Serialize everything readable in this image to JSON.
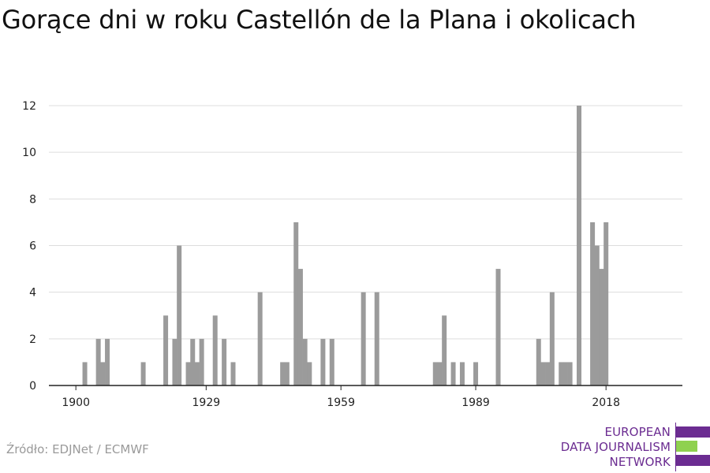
{
  "title": "Gorące dni w roku Castellón de la Plana i okolicach",
  "source": "Źródło: EDJNet / ECMWF",
  "logo": {
    "lines": [
      "EUROPEAN",
      "DATA JOURNALISM",
      "NETWORK"
    ],
    "colors": {
      "purple": "#6b2c91",
      "green": "#8fd14f"
    }
  },
  "colors": {
    "bar": "#9b9b9b",
    "grid": "#dddddd",
    "axis": "#222222",
    "text": "#222222"
  },
  "chart_data": {
    "type": "bar",
    "title": "Gorące dni w roku Castellón de la Plana i okolicach",
    "xlabel": "",
    "ylabel": "",
    "xlim": [
      1900,
      2018
    ],
    "ylim": [
      0,
      12
    ],
    "yticks": [
      0,
      2,
      4,
      6,
      8,
      10,
      12
    ],
    "xticks": [
      1900,
      1929,
      1959,
      1989,
      2018
    ],
    "grid": true,
    "legend": "none",
    "series": [
      {
        "values": [
          {
            "x": 1902,
            "y": 1
          },
          {
            "x": 1905,
            "y": 2
          },
          {
            "x": 1906,
            "y": 1
          },
          {
            "x": 1907,
            "y": 2
          },
          {
            "x": 1915,
            "y": 1
          },
          {
            "x": 1920,
            "y": 3
          },
          {
            "x": 1922,
            "y": 2
          },
          {
            "x": 1923,
            "y": 6
          },
          {
            "x": 1925,
            "y": 1
          },
          {
            "x": 1926,
            "y": 2
          },
          {
            "x": 1927,
            "y": 1
          },
          {
            "x": 1928,
            "y": 2
          },
          {
            "x": 1931,
            "y": 3
          },
          {
            "x": 1933,
            "y": 2
          },
          {
            "x": 1935,
            "y": 1
          },
          {
            "x": 1941,
            "y": 4
          },
          {
            "x": 1946,
            "y": 1
          },
          {
            "x": 1947,
            "y": 1
          },
          {
            "x": 1949,
            "y": 7
          },
          {
            "x": 1950,
            "y": 5
          },
          {
            "x": 1951,
            "y": 2
          },
          {
            "x": 1952,
            "y": 1
          },
          {
            "x": 1955,
            "y": 2
          },
          {
            "x": 1957,
            "y": 2
          },
          {
            "x": 1964,
            "y": 4
          },
          {
            "x": 1967,
            "y": 4
          },
          {
            "x": 1980,
            "y": 1
          },
          {
            "x": 1981,
            "y": 1
          },
          {
            "x": 1982,
            "y": 3
          },
          {
            "x": 1984,
            "y": 1
          },
          {
            "x": 1986,
            "y": 1
          },
          {
            "x": 1989,
            "y": 1
          },
          {
            "x": 1994,
            "y": 5
          },
          {
            "x": 2003,
            "y": 2
          },
          {
            "x": 2004,
            "y": 1
          },
          {
            "x": 2005,
            "y": 1
          },
          {
            "x": 2006,
            "y": 4
          },
          {
            "x": 2008,
            "y": 1
          },
          {
            "x": 2009,
            "y": 1
          },
          {
            "x": 2010,
            "y": 1
          },
          {
            "x": 2012,
            "y": 12
          },
          {
            "x": 2015,
            "y": 7
          },
          {
            "x": 2016,
            "y": 6
          },
          {
            "x": 2017,
            "y": 5
          },
          {
            "x": 2018,
            "y": 7
          }
        ]
      }
    ]
  }
}
